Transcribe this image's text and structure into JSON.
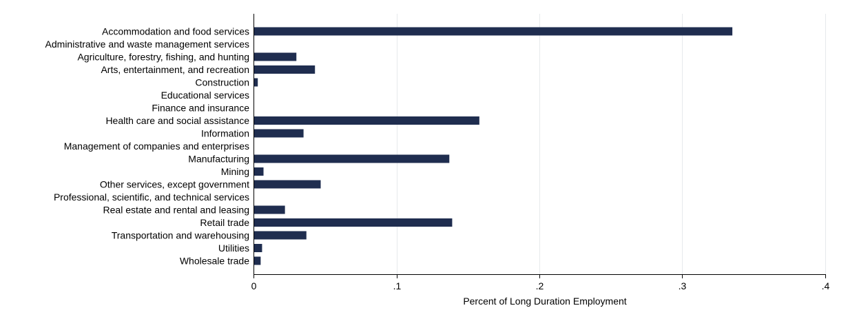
{
  "chart_data": {
    "type": "bar",
    "orientation": "horizontal",
    "categories": [
      "Accommodation and food services",
      "Administrative and waste management services",
      "Agriculture, forestry, fishing, and hunting",
      "Arts, entertainment, and recreation",
      "Construction",
      "Educational services",
      "Finance and insurance",
      "Health care and social assistance",
      "Information",
      "Management of companies and enterprises",
      "Manufacturing",
      "Mining",
      "Other services, except government",
      "Professional, scientific, and technical services",
      "Real estate and rental and leasing",
      "Retail trade",
      "Transportation and warehousing",
      "Utilities",
      "Wholesale trade"
    ],
    "values": [
      0.335,
      0,
      0.03,
      0.043,
      0.003,
      0,
      0,
      0.158,
      0.035,
      0,
      0.137,
      0.007,
      0.047,
      0,
      0.022,
      0.139,
      0.037,
      0.006,
      0.005
    ],
    "xlabel": "Percent of Long Duration Employment",
    "ylabel": "",
    "xlim": [
      0,
      0.4
    ],
    "xticks": [
      0,
      0.1,
      0.2,
      0.3,
      0.4
    ],
    "xtick_labels": [
      "0",
      ".1",
      ".2",
      ".3",
      ".4"
    ],
    "grid": true,
    "legend": "none",
    "bar_color": "#1f2d4f",
    "grid_color": "#e6e9ec"
  }
}
